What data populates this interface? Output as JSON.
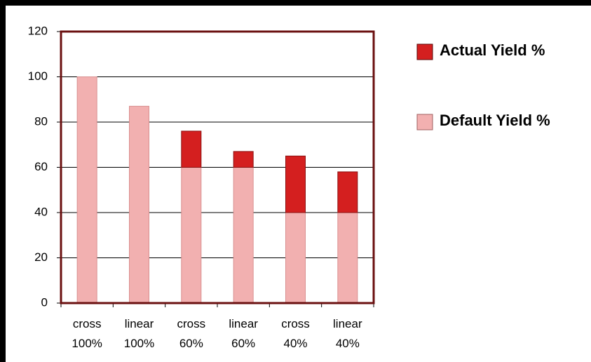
{
  "chart_data": {
    "type": "stacked_bar",
    "categories": [
      "cross 100%",
      "linear 100%",
      "cross 60%",
      "linear 60%",
      "cross 40%",
      "linear 40%"
    ],
    "series": [
      {
        "name": "Default Yield %",
        "color": "#f2b0b0",
        "values": [
          100,
          87,
          60,
          60,
          40,
          40
        ]
      },
      {
        "name": "Actual Yield %",
        "color": "#d41f1f",
        "values": [
          0,
          0,
          16,
          7,
          25,
          18
        ]
      }
    ],
    "ylim": [
      0,
      120
    ],
    "yticks": [
      0,
      20,
      40,
      60,
      80,
      100,
      120
    ],
    "grid": true,
    "legend": "right"
  }
}
